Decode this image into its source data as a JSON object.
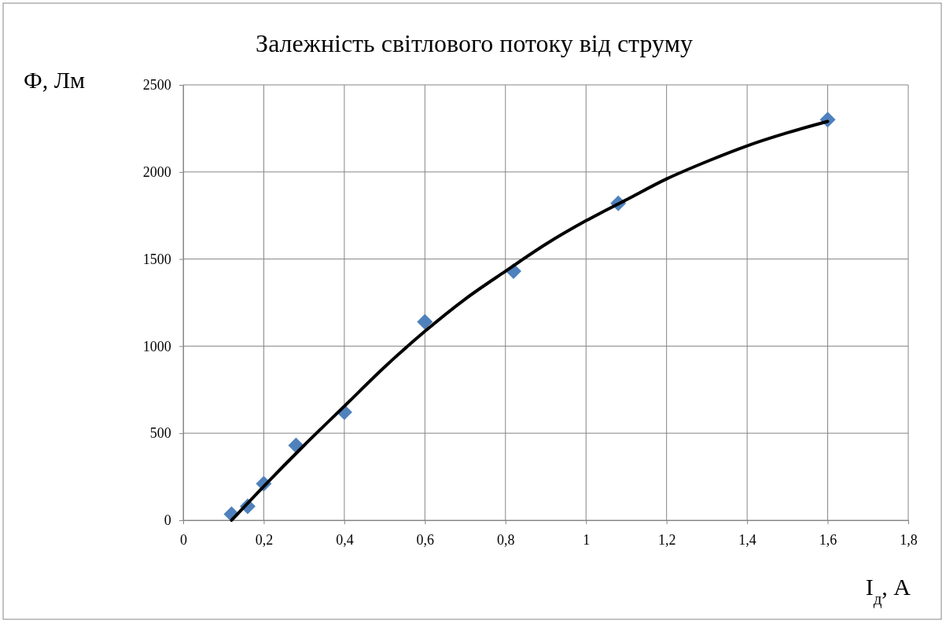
{
  "chart_data": {
    "type": "scatter",
    "title": "Залежність світлового потоку від струму",
    "xlabel": "I$_{д}$, А",
    "ylabel": "Ф, Лм",
    "xlim": [
      0,
      1.8
    ],
    "ylim": [
      0,
      2500
    ],
    "xticks": [
      0,
      {
        "value": 0.2,
        "label": "0,2"
      },
      {
        "value": 0.4,
        "label": "0,4"
      },
      {
        "value": 0.6,
        "label": "0,6"
      },
      {
        "value": 0.8,
        "label": "0,8"
      },
      1,
      {
        "value": 1.2,
        "label": "1,2"
      },
      {
        "value": 1.4,
        "label": "1,4"
      },
      {
        "value": 1.6,
        "label": "1,6"
      },
      {
        "value": 1.8,
        "label": "1,8"
      }
    ],
    "yticks": [
      0,
      500,
      1000,
      1500,
      2000,
      2500
    ],
    "grid": true,
    "series": [
      {
        "marker": "diamond",
        "color": "#4f81bd",
        "x": [
          0.12,
          0.16,
          0.2,
          0.28,
          0.4,
          0.6,
          0.82,
          1.08,
          1.6
        ],
        "values": [
          35,
          80,
          210,
          430,
          620,
          1140,
          1430,
          1820,
          2300
        ]
      },
      {
        "type": "line",
        "marker": "none",
        "line_style": "solid",
        "color": "#000000",
        "x": [
          0.12,
          0.2,
          0.3,
          0.4,
          0.5,
          0.6,
          0.7,
          0.8,
          0.9,
          1.0,
          1.1,
          1.2,
          1.3,
          1.4,
          1.5,
          1.6
        ],
        "values": [
          0,
          195,
          430,
          655,
          880,
          1085,
          1270,
          1430,
          1585,
          1720,
          1840,
          1960,
          2060,
          2150,
          2225,
          2290
        ]
      }
    ]
  }
}
